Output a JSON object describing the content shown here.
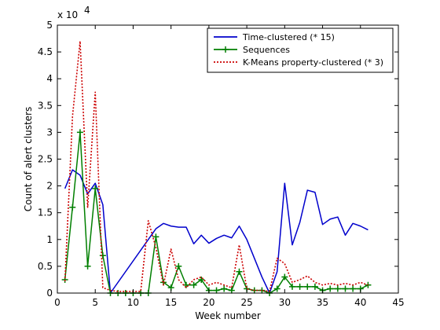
{
  "chart_data": {
    "type": "line",
    "title": "",
    "xlabel": "Week number",
    "ylabel": "Count of alert clusters",
    "y_multiplier_label": {
      "base": "x 10",
      "exponent": "4"
    },
    "xlim": [
      0,
      45
    ],
    "ylim": [
      0,
      50000
    ],
    "x_ticks": [
      0,
      5,
      10,
      15,
      20,
      25,
      30,
      35,
      40,
      45
    ],
    "y_ticks": [
      0,
      5000,
      10000,
      15000,
      20000,
      25000,
      30000,
      35000,
      40000,
      45000,
      50000
    ],
    "y_tick_labels": [
      "0",
      "0.5",
      "1",
      "1.5",
      "2",
      "2.5",
      "3",
      "3.5",
      "4",
      "4.5",
      "5"
    ],
    "grid": false,
    "legend_position": "top-right",
    "series": [
      {
        "name": "Time-clustered (* 15)",
        "color": "#0000cc",
        "line_style": "solid",
        "marker": "none",
        "x": [
          1,
          2,
          3,
          4,
          5,
          6,
          7,
          13,
          14,
          15,
          16,
          17,
          18,
          19,
          20,
          21,
          22,
          23,
          24,
          25,
          26,
          27,
          28,
          29,
          30,
          31,
          32,
          33,
          34,
          35,
          36,
          37,
          38,
          39,
          40,
          41
        ],
        "y": [
          19500,
          23000,
          22000,
          18500,
          20500,
          16500,
          0,
          12000,
          13000,
          12500,
          12300,
          12300,
          9200,
          10800,
          9300,
          10200,
          10800,
          10300,
          12500,
          10000,
          6500,
          3000,
          0,
          4000,
          20500,
          9000,
          13200,
          19200,
          18800,
          12800,
          13800,
          14200,
          10800,
          13000,
          12500,
          11800
        ]
      },
      {
        "name": "Sequences",
        "color": "#007f00",
        "line_style": "solid",
        "marker": "plus",
        "x": [
          1,
          2,
          3,
          4,
          5,
          6,
          7,
          8,
          9,
          10,
          11,
          12,
          13,
          14,
          15,
          16,
          17,
          18,
          19,
          20,
          21,
          22,
          23,
          24,
          25,
          26,
          27,
          28,
          29,
          30,
          31,
          32,
          33,
          34,
          35,
          36,
          37,
          38,
          39,
          40,
          41
        ],
        "y": [
          2500,
          16000,
          30000,
          5000,
          19500,
          7000,
          0,
          0,
          0,
          0,
          0,
          0,
          10500,
          2000,
          1000,
          5000,
          1500,
          1500,
          2500,
          500,
          500,
          800,
          500,
          4000,
          800,
          500,
          500,
          0,
          800,
          3000,
          1200,
          1200,
          1200,
          1200,
          500,
          800,
          800,
          800,
          800,
          800,
          1500
        ]
      },
      {
        "name": "K-Means property-clustered (* 3)",
        "color": "#cc0000",
        "line_style": "dotted",
        "marker": "none",
        "x": [
          1,
          2,
          3,
          4,
          5,
          6,
          7,
          8,
          9,
          10,
          11,
          12,
          13,
          14,
          15,
          16,
          17,
          18,
          19,
          20,
          21,
          22,
          23,
          24,
          25,
          26,
          27,
          28,
          29,
          30,
          31,
          32,
          33,
          34,
          35,
          36,
          37,
          38,
          39,
          40,
          41
        ],
        "y": [
          2200,
          33000,
          47000,
          16000,
          37500,
          1000,
          500,
          300,
          300,
          300,
          300,
          13500,
          8500,
          1500,
          8200,
          2500,
          1000,
          2500,
          3000,
          1500,
          2000,
          1500,
          1000,
          9000,
          800,
          500,
          500,
          300,
          6500,
          5500,
          2000,
          2500,
          3200,
          2000,
          1500,
          1800,
          1500,
          1800,
          1500,
          2000,
          1500
        ]
      }
    ]
  }
}
